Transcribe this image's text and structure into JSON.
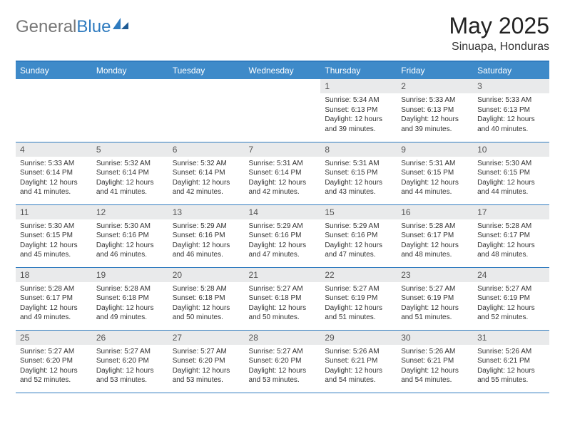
{
  "logo": {
    "text1": "General",
    "text2": "Blue"
  },
  "title": "May 2025",
  "location": "Sinuapa, Honduras",
  "colors": {
    "header_bg": "#3e8ac9",
    "rule": "#2f7bbf",
    "daynum_bg": "#e9eaeb",
    "text": "#333333",
    "logo_accent": "#2f7bbf"
  },
  "typography": {
    "title_size_pt": 24,
    "body_size_pt": 7.5
  },
  "calendar": {
    "type": "table",
    "columns": [
      "Sunday",
      "Monday",
      "Tuesday",
      "Wednesday",
      "Thursday",
      "Friday",
      "Saturday"
    ],
    "weeks": [
      [
        {
          "n": "",
          "sr": "",
          "ss": "",
          "dl": ""
        },
        {
          "n": "",
          "sr": "",
          "ss": "",
          "dl": ""
        },
        {
          "n": "",
          "sr": "",
          "ss": "",
          "dl": ""
        },
        {
          "n": "",
          "sr": "",
          "ss": "",
          "dl": ""
        },
        {
          "n": "1",
          "sr": "5:34 AM",
          "ss": "6:13 PM",
          "dl": "12 hours and 39 minutes."
        },
        {
          "n": "2",
          "sr": "5:33 AM",
          "ss": "6:13 PM",
          "dl": "12 hours and 39 minutes."
        },
        {
          "n": "3",
          "sr": "5:33 AM",
          "ss": "6:13 PM",
          "dl": "12 hours and 40 minutes."
        }
      ],
      [
        {
          "n": "4",
          "sr": "5:33 AM",
          "ss": "6:14 PM",
          "dl": "12 hours and 41 minutes."
        },
        {
          "n": "5",
          "sr": "5:32 AM",
          "ss": "6:14 PM",
          "dl": "12 hours and 41 minutes."
        },
        {
          "n": "6",
          "sr": "5:32 AM",
          "ss": "6:14 PM",
          "dl": "12 hours and 42 minutes."
        },
        {
          "n": "7",
          "sr": "5:31 AM",
          "ss": "6:14 PM",
          "dl": "12 hours and 42 minutes."
        },
        {
          "n": "8",
          "sr": "5:31 AM",
          "ss": "6:15 PM",
          "dl": "12 hours and 43 minutes."
        },
        {
          "n": "9",
          "sr": "5:31 AM",
          "ss": "6:15 PM",
          "dl": "12 hours and 44 minutes."
        },
        {
          "n": "10",
          "sr": "5:30 AM",
          "ss": "6:15 PM",
          "dl": "12 hours and 44 minutes."
        }
      ],
      [
        {
          "n": "11",
          "sr": "5:30 AM",
          "ss": "6:15 PM",
          "dl": "12 hours and 45 minutes."
        },
        {
          "n": "12",
          "sr": "5:30 AM",
          "ss": "6:16 PM",
          "dl": "12 hours and 46 minutes."
        },
        {
          "n": "13",
          "sr": "5:29 AM",
          "ss": "6:16 PM",
          "dl": "12 hours and 46 minutes."
        },
        {
          "n": "14",
          "sr": "5:29 AM",
          "ss": "6:16 PM",
          "dl": "12 hours and 47 minutes."
        },
        {
          "n": "15",
          "sr": "5:29 AM",
          "ss": "6:16 PM",
          "dl": "12 hours and 47 minutes."
        },
        {
          "n": "16",
          "sr": "5:28 AM",
          "ss": "6:17 PM",
          "dl": "12 hours and 48 minutes."
        },
        {
          "n": "17",
          "sr": "5:28 AM",
          "ss": "6:17 PM",
          "dl": "12 hours and 48 minutes."
        }
      ],
      [
        {
          "n": "18",
          "sr": "5:28 AM",
          "ss": "6:17 PM",
          "dl": "12 hours and 49 minutes."
        },
        {
          "n": "19",
          "sr": "5:28 AM",
          "ss": "6:18 PM",
          "dl": "12 hours and 49 minutes."
        },
        {
          "n": "20",
          "sr": "5:28 AM",
          "ss": "6:18 PM",
          "dl": "12 hours and 50 minutes."
        },
        {
          "n": "21",
          "sr": "5:27 AM",
          "ss": "6:18 PM",
          "dl": "12 hours and 50 minutes."
        },
        {
          "n": "22",
          "sr": "5:27 AM",
          "ss": "6:19 PM",
          "dl": "12 hours and 51 minutes."
        },
        {
          "n": "23",
          "sr": "5:27 AM",
          "ss": "6:19 PM",
          "dl": "12 hours and 51 minutes."
        },
        {
          "n": "24",
          "sr": "5:27 AM",
          "ss": "6:19 PM",
          "dl": "12 hours and 52 minutes."
        }
      ],
      [
        {
          "n": "25",
          "sr": "5:27 AM",
          "ss": "6:20 PM",
          "dl": "12 hours and 52 minutes."
        },
        {
          "n": "26",
          "sr": "5:27 AM",
          "ss": "6:20 PM",
          "dl": "12 hours and 53 minutes."
        },
        {
          "n": "27",
          "sr": "5:27 AM",
          "ss": "6:20 PM",
          "dl": "12 hours and 53 minutes."
        },
        {
          "n": "28",
          "sr": "5:27 AM",
          "ss": "6:20 PM",
          "dl": "12 hours and 53 minutes."
        },
        {
          "n": "29",
          "sr": "5:26 AM",
          "ss": "6:21 PM",
          "dl": "12 hours and 54 minutes."
        },
        {
          "n": "30",
          "sr": "5:26 AM",
          "ss": "6:21 PM",
          "dl": "12 hours and 54 minutes."
        },
        {
          "n": "31",
          "sr": "5:26 AM",
          "ss": "6:21 PM",
          "dl": "12 hours and 55 minutes."
        }
      ]
    ],
    "labels": {
      "sunrise": "Sunrise:",
      "sunset": "Sunset:",
      "daylight": "Daylight:"
    }
  }
}
